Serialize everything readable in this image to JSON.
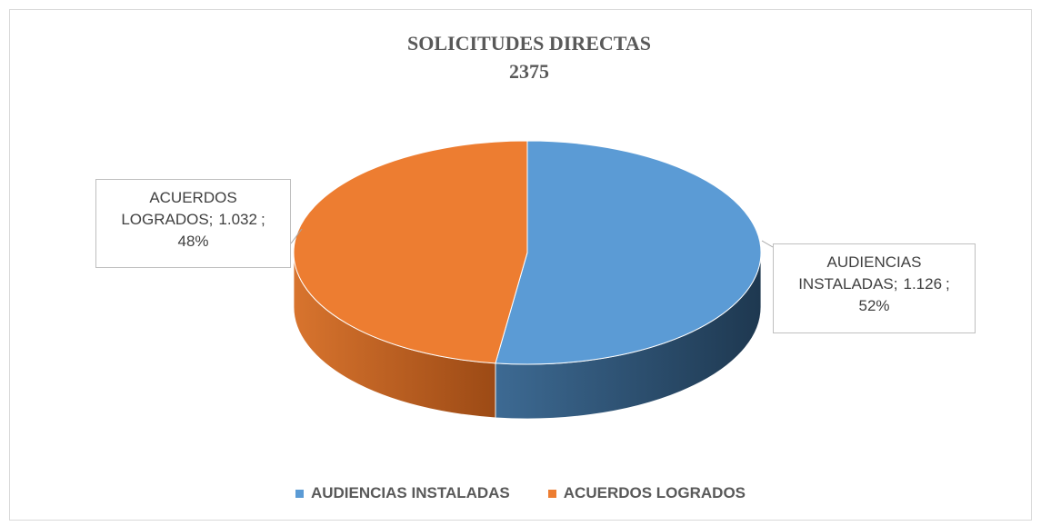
{
  "chart_data": {
    "type": "pie3d",
    "title": "SOLICITUDES DIRECTAS",
    "subtitle": "2375",
    "categories": [
      "AUDIENCIAS INSTALADAS",
      "ACUERDOS LOGRADOS"
    ],
    "values": [
      1126,
      1032
    ],
    "value_labels": [
      "1.126",
      "1.032"
    ],
    "percent_values": [
      52,
      48
    ],
    "percent_labels": [
      "52%",
      "48%"
    ],
    "label_separator": ";",
    "colors": [
      "#5b9bd5",
      "#ed7d31"
    ],
    "legend": "bottom"
  }
}
